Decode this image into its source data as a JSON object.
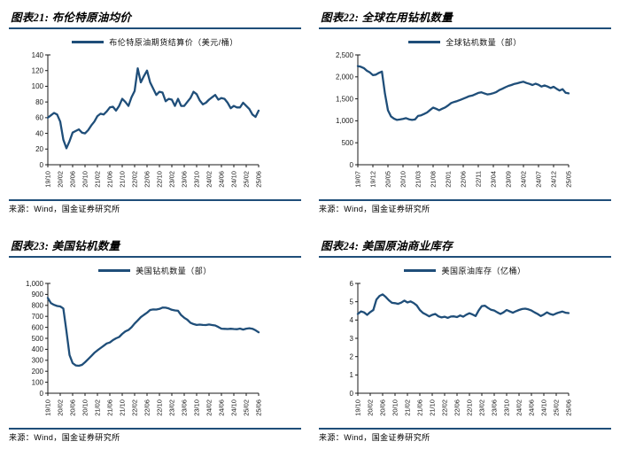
{
  "page": {
    "background": "#ffffff",
    "accent_color": "#1F4E79",
    "source_note": "来源：Wind，国金证券研究所"
  },
  "chart_data": [
    {
      "id": "figure-21",
      "type": "line",
      "title": "图表21: 布伦特原油均价",
      "legend": "布伦特原油期货结算价（美元/桶）",
      "source": "来源：Wind，国金证券研究所",
      "line_color": "#1F4E79",
      "grid": false,
      "legend_position": "top",
      "y_axis": {
        "min": 0,
        "max": 140,
        "tick_labels": [
          "0",
          "20",
          "40",
          "60",
          "80",
          "100",
          "120",
          "140"
        ]
      },
      "x_tick_labels": [
        "19/10",
        "20/02",
        "20/06",
        "20/10",
        "21/02",
        "21/06",
        "21/10",
        "22/02",
        "22/06",
        "22/10",
        "23/02",
        "23/06",
        "23/10",
        "24/02",
        "24/06",
        "24/10",
        "25/02",
        "25/06"
      ],
      "values": [
        60,
        63,
        66,
        64,
        55,
        32,
        21,
        30,
        41,
        43,
        45,
        41,
        40,
        44,
        50,
        55,
        62,
        65,
        64,
        68,
        73,
        74,
        69,
        75,
        84,
        80,
        75,
        86,
        94,
        123,
        105,
        113,
        120,
        105,
        97,
        89,
        93,
        92,
        81,
        84,
        83,
        75,
        84,
        75,
        75,
        80,
        85,
        93,
        90,
        82,
        77,
        79,
        83,
        86,
        89,
        83,
        85,
        84,
        79,
        72,
        75,
        73,
        73,
        79,
        75,
        71,
        64,
        61,
        69
      ]
    },
    {
      "id": "figure-22",
      "type": "line",
      "title": "图表22: 全球在用钻机数量",
      "legend": "全球钻机数量（部）",
      "source": "来源：Wind，国金证券研究所",
      "line_color": "#1F4E79",
      "grid": false,
      "legend_position": "top",
      "y_axis": {
        "min": 0,
        "max": 2500,
        "tick_labels": [
          "0",
          "500",
          "1,000",
          "1,500",
          "2,000",
          "2,500"
        ]
      },
      "x_tick_labels": [
        "19/07",
        "19/12",
        "20/05",
        "20/10",
        "21/03",
        "21/08",
        "22/01",
        "22/06",
        "22/11",
        "23/04",
        "23/09",
        "24/02",
        "24/07",
        "24/12",
        "25/05"
      ],
      "values": [
        2245,
        2230,
        2200,
        2140,
        2100,
        2040,
        2050,
        2090,
        2120,
        1620,
        1240,
        1100,
        1050,
        1020,
        1030,
        1045,
        1060,
        1035,
        1020,
        1030,
        1110,
        1125,
        1155,
        1190,
        1245,
        1300,
        1275,
        1240,
        1275,
        1305,
        1350,
        1405,
        1430,
        1450,
        1475,
        1505,
        1530,
        1560,
        1575,
        1605,
        1635,
        1650,
        1625,
        1600,
        1610,
        1630,
        1655,
        1700,
        1730,
        1765,
        1795,
        1815,
        1840,
        1855,
        1875,
        1890,
        1860,
        1840,
        1815,
        1845,
        1820,
        1780,
        1805,
        1780,
        1745,
        1775,
        1730,
        1690,
        1720,
        1640,
        1625
      ]
    },
    {
      "id": "figure-23",
      "type": "line",
      "title": "图表23: 美国钻机数量",
      "legend": "美国钻机数量（部）",
      "source": "来源：Wind，国金证券研究所",
      "line_color": "#1F4E79",
      "grid": false,
      "legend_position": "top",
      "y_axis": {
        "min": 0,
        "max": 1000,
        "tick_labels": [
          "0",
          "100",
          "200",
          "300",
          "400",
          "500",
          "600",
          "700",
          "800",
          "900",
          "1,000"
        ]
      },
      "x_tick_labels": [
        "19/10",
        "20/02",
        "20/06",
        "20/10",
        "21/02",
        "21/06",
        "21/10",
        "22/02",
        "22/06",
        "22/10",
        "23/02",
        "23/06",
        "23/10",
        "24/02",
        "24/06",
        "24/10",
        "25/02",
        "25/06"
      ],
      "values": [
        868,
        820,
        805,
        794,
        790,
        772,
        566,
        348,
        274,
        253,
        250,
        258,
        282,
        310,
        338,
        368,
        390,
        411,
        432,
        453,
        462,
        484,
        500,
        512,
        540,
        563,
        576,
        601,
        635,
        663,
        693,
        714,
        733,
        758,
        763,
        762,
        768,
        780,
        779,
        772,
        760,
        754,
        751,
        711,
        687,
        669,
        642,
        630,
        622,
        625,
        622,
        621,
        626,
        621,
        617,
        603,
        588,
        586,
        585,
        587,
        585,
        583,
        589,
        580,
        588,
        592,
        587,
        573,
        555
      ]
    },
    {
      "id": "figure-24",
      "type": "line",
      "title": "图表24: 美国原油商业库存",
      "legend": "美国原油库存（亿桶）",
      "source": "来源：Wind，国金证券研究所",
      "line_color": "#1F4E79",
      "grid": false,
      "legend_position": "top",
      "y_axis": {
        "min": 0,
        "max": 6,
        "tick_labels": [
          "0",
          "1",
          "2",
          "3",
          "4",
          "5",
          "6"
        ]
      },
      "x_tick_labels": [
        "19/10",
        "20/02",
        "20/06",
        "20/10",
        "21/02",
        "21/06",
        "21/10",
        "22/02",
        "22/06",
        "22/10",
        "23/02",
        "23/06",
        "23/10",
        "24/02",
        "24/06",
        "24/10",
        "25/02",
        "25/06"
      ],
      "values": [
        4.33,
        4.47,
        4.42,
        4.28,
        4.43,
        4.55,
        5.12,
        5.32,
        5.4,
        5.26,
        5.08,
        4.94,
        4.92,
        4.88,
        4.95,
        5.06,
        4.96,
        5.02,
        4.93,
        4.8,
        4.55,
        4.39,
        4.3,
        4.2,
        4.28,
        4.33,
        4.2,
        4.14,
        4.18,
        4.12,
        4.19,
        4.2,
        4.16,
        4.25,
        4.18,
        4.29,
        4.37,
        4.3,
        4.22,
        4.53,
        4.76,
        4.78,
        4.66,
        4.56,
        4.52,
        4.42,
        4.33,
        4.42,
        4.55,
        4.47,
        4.4,
        4.48,
        4.55,
        4.6,
        4.62,
        4.58,
        4.52,
        4.42,
        4.33,
        4.22,
        4.3,
        4.42,
        4.33,
        4.28,
        4.36,
        4.42,
        4.46,
        4.4,
        4.38
      ]
    }
  ]
}
